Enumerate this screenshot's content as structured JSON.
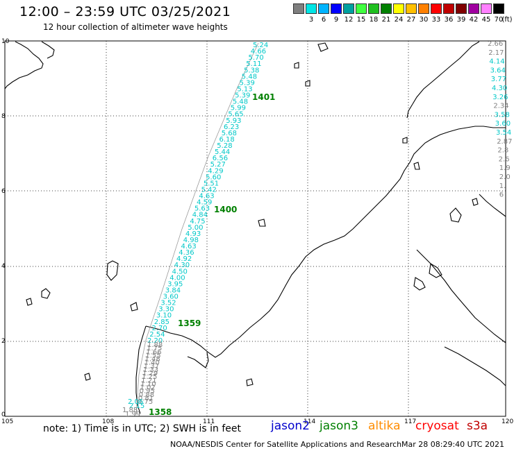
{
  "header": {
    "title": "12:00 – 23:59 UTC 03/25/2021",
    "subtitle": "12 hour collection of altimeter wave heights"
  },
  "color_scale": {
    "unit_label": "(ft)",
    "bins": [
      {
        "label": "",
        "color": "#7f7f7f"
      },
      {
        "label": "3",
        "color": "#00e5e5"
      },
      {
        "label": "6",
        "color": "#00b4ff"
      },
      {
        "label": "9",
        "color": "#0000ff"
      },
      {
        "label": "12",
        "color": "#00a0a0"
      },
      {
        "label": "15",
        "color": "#40ff40"
      },
      {
        "label": "18",
        "color": "#20c020"
      },
      {
        "label": "21",
        "color": "#008000"
      },
      {
        "label": "24",
        "color": "#ffff00"
      },
      {
        "label": "27",
        "color": "#ffc000"
      },
      {
        "label": "30",
        "color": "#ff8000"
      },
      {
        "label": "33",
        "color": "#ff0000"
      },
      {
        "label": "36",
        "color": "#c00000"
      },
      {
        "label": "39",
        "color": "#800000"
      },
      {
        "label": "42",
        "color": "#a000a0"
      },
      {
        "label": "45",
        "color": "#ff80ff"
      },
      {
        "label": "70",
        "color": "#000000"
      }
    ]
  },
  "axes": {
    "lon_ticks": [
      "105",
      "108",
      "111",
      "114",
      "117",
      "120"
    ],
    "lat_ticks": [
      "0",
      "2",
      "4",
      "6",
      "8",
      "10"
    ]
  },
  "times": [
    {
      "id": "t1401",
      "label": "1401",
      "color": "#008000"
    },
    {
      "id": "t1400",
      "label": "1400",
      "color": "#008000"
    },
    {
      "id": "t1359",
      "label": "1359",
      "color": "#008000"
    },
    {
      "id": "t1358",
      "label": "1358",
      "color": "#008000"
    }
  ],
  "track_main": {
    "color": "#00c8c8",
    "values": [
      "5.24",
      "4.66",
      "5.70",
      "5.11",
      "5.38",
      "5.48",
      "5.39",
      "5.13",
      "5.39",
      "5.48",
      "5.99",
      "5.65",
      "5.93",
      "6.23",
      "5.68",
      "6.18",
      "5.28",
      "5.44",
      "6.56",
      "5.27",
      "4.29",
      "5.60",
      "5.51",
      "5.42",
      "4.63",
      "4.59",
      "5.63",
      "4.84",
      "4.75",
      "5.00",
      "4.93",
      "4.98",
      "4.63",
      "4.36",
      "4.92",
      "4.30",
      "4.50",
      "4.00",
      "3.95",
      "3.84",
      "3.60",
      "3.52",
      "3.30",
      "3.10",
      "2.85",
      "2.70",
      "2.54",
      "2.20"
    ]
  },
  "track_main_grey": {
    "color": "#808080",
    "values": [
      "1.88",
      "1.75",
      "1.66",
      "1.55",
      "1.48",
      "1.40",
      "1.37",
      "1.33",
      "1.29",
      "1.25",
      "1.21",
      "1.10",
      "1.02",
      "0.95",
      "0.88",
      "0.81",
      "0.75"
    ]
  },
  "track_bottom": {
    "values": [
      {
        "v": "2.06",
        "color": "#00c8c8"
      },
      {
        "v": "2.15",
        "color": "#00c8c8"
      },
      {
        "v": "1.88",
        "color": "#808080"
      },
      {
        "v": "1.99",
        "color": "#808080"
      }
    ]
  },
  "track_right": {
    "values": [
      {
        "v": "2.66",
        "color": "#808080"
      },
      {
        "v": "2.17",
        "color": "#808080"
      },
      {
        "v": "4.14",
        "color": "#00c8c8"
      },
      {
        "v": "3.64",
        "color": "#00c8c8"
      },
      {
        "v": "3.77",
        "color": "#00c8c8"
      },
      {
        "v": "4.30",
        "color": "#00c8c8"
      },
      {
        "v": "3.26",
        "color": "#00c8c8"
      },
      {
        "v": "2.34",
        "color": "#808080"
      },
      {
        "v": "3.58",
        "color": "#00c8c8"
      },
      {
        "v": "3.60",
        "color": "#00c8c8"
      },
      {
        "v": "3.54",
        "color": "#00c8c8"
      },
      {
        "v": "2.87",
        "color": "#808080"
      },
      {
        "v": "2.8",
        "color": "#808080"
      },
      {
        "v": "2.6",
        "color": "#808080"
      },
      {
        "v": "1.9",
        "color": "#808080"
      },
      {
        "v": "2.0",
        "color": "#808080"
      },
      {
        "v": "1.",
        "color": "#808080"
      },
      {
        "v": "6",
        "color": "#808080"
      }
    ]
  },
  "note": "note:  1) Time is in UTC;  2) SWH is in feet",
  "satellites": [
    {
      "name": "jason2",
      "color": "#0000cc"
    },
    {
      "name": "jason3",
      "color": "#008000"
    },
    {
      "name": "altika",
      "color": "#ff8c00"
    },
    {
      "name": "cryosat",
      "color": "#ff0000"
    },
    {
      "name": "s3a",
      "color": "#c00000"
    }
  ],
  "footer": {
    "left": "NOAA/NESDIS Center for Satellite Applications and Research",
    "right": "Mar 28 08:29:40 UTC 2021"
  }
}
